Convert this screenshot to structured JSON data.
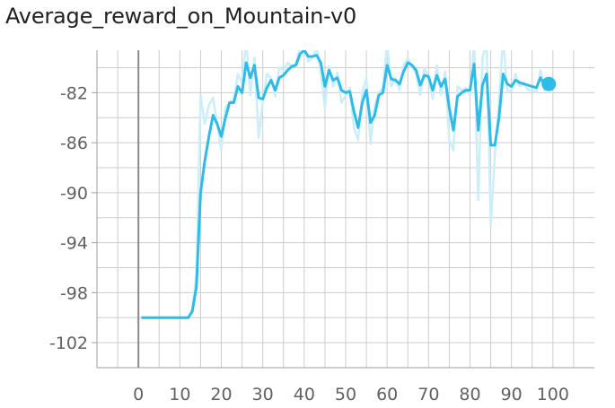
{
  "chart_data": {
    "type": "line",
    "title": "Average_reward_on_Mountain-v0",
    "xlabel": "",
    "ylabel": "",
    "xlim": [
      -10,
      110
    ],
    "ylim": [
      -104.0,
      -78.6
    ],
    "x_ticks": [
      0,
      10,
      20,
      30,
      40,
      50,
      60,
      70,
      80,
      90,
      100
    ],
    "y_ticks": [
      -82,
      -86,
      -90,
      -94,
      -98,
      -102
    ],
    "grid": true,
    "colors": {
      "smoothed": "#2fbbe8",
      "raw": "#cbeef9",
      "axis": "#9e9e9e",
      "grid": "#cccccc"
    },
    "series": [
      {
        "x": [
          1,
          2,
          3,
          4,
          5,
          6,
          7,
          8,
          9,
          10,
          11,
          12,
          13,
          14,
          15,
          16,
          17,
          18,
          19,
          20,
          21,
          22,
          23,
          24,
          25,
          26,
          27,
          28,
          29,
          30,
          31,
          32,
          33,
          34,
          35,
          36,
          37,
          38,
          39,
          40,
          41,
          42,
          43,
          44,
          45,
          46,
          47,
          48,
          49,
          50,
          51,
          52,
          53,
          54,
          55,
          56,
          57,
          58,
          59,
          60,
          61,
          62,
          63,
          64,
          65,
          66,
          67,
          68,
          69,
          70,
          71,
          72,
          73,
          74,
          75,
          76,
          77,
          78,
          79,
          80,
          81,
          82,
          83,
          84,
          85,
          86,
          87,
          88,
          89,
          90,
          91,
          92,
          93,
          94,
          95,
          96,
          97,
          98,
          99
        ],
        "values": [
          -100,
          -100,
          -100,
          -100,
          -100,
          -100,
          -100,
          -100,
          -100,
          -100,
          -100,
          -100,
          -99.5,
          -97.5,
          -90,
          -87.5,
          -85.5,
          -83.8,
          -84.5,
          -85.5,
          -84,
          -82.8,
          -82.8,
          -81.5,
          -82,
          -79.6,
          -80.8,
          -79.8,
          -82.4,
          -82.5,
          -81.6,
          -81.0,
          -81.8,
          -80.8,
          -80.6,
          -80.2,
          -79.9,
          -79.8,
          -78.9,
          -78.6,
          -79.1,
          -79.1,
          -79.0,
          -79.6,
          -81.5,
          -80.2,
          -81.0,
          -80.8,
          -81.8,
          -82.0,
          -81.9,
          -83.5,
          -84.8,
          -82.8,
          -81.8,
          -84.4,
          -83.8,
          -82.2,
          -82.0,
          -79.8,
          -80.9,
          -81.0,
          -81.3,
          -80.3,
          -79.6,
          -79.8,
          -80.2,
          -81.4,
          -80.6,
          -80.7,
          -81.8,
          -80.6,
          -81.5,
          -80.9,
          -83.2,
          -85.0,
          -82.3,
          -82.0,
          -81.8,
          -81.8,
          -79.7,
          -85.0,
          -81.4,
          -80.5,
          -86.2,
          -86.2,
          -84.0,
          -80.5,
          -81.3,
          -81.5,
          -81.0,
          -81.2,
          -81.3,
          -81.4,
          -81.5,
          -81.6,
          -80.8,
          -81.4,
          -81.3
        ]
      },
      {
        "x": [
          1,
          2,
          3,
          4,
          5,
          6,
          7,
          8,
          9,
          10,
          11,
          12,
          13,
          14,
          15,
          16,
          17,
          18,
          19,
          20,
          21,
          22,
          23,
          24,
          25,
          26,
          27,
          28,
          29,
          30,
          31,
          32,
          33,
          34,
          35,
          36,
          37,
          38,
          39,
          40,
          41,
          42,
          43,
          44,
          45,
          46,
          47,
          48,
          49,
          50,
          51,
          52,
          53,
          54,
          55,
          56,
          57,
          58,
          59,
          60,
          61,
          62,
          63,
          64,
          65,
          66,
          67,
          68,
          69,
          70,
          71,
          72,
          73,
          74,
          75,
          76,
          77,
          78,
          79,
          80,
          81,
          82,
          83,
          84,
          85,
          86,
          87,
          88,
          89,
          90,
          91,
          92,
          93,
          94,
          95,
          96,
          97,
          98,
          99
        ],
        "values": [
          -100,
          -100,
          -100,
          -100,
          -100,
          -100,
          -100,
          -100,
          -100,
          -100,
          -100,
          -100,
          -99.3,
          -96.5,
          -82.2,
          -84.5,
          -83.0,
          -82.4,
          -84.5,
          -86.6,
          -83.2,
          -82.8,
          -82.5,
          -80.5,
          -81.2,
          -77.8,
          -82.2,
          -79.2,
          -85.6,
          -82.7,
          -80.5,
          -80.8,
          -82.3,
          -80.0,
          -80.2,
          -79.6,
          -79.9,
          -79.7,
          -78.4,
          -78.2,
          -79.5,
          -79.2,
          -78.4,
          -80.4,
          -83.2,
          -79.9,
          -81.5,
          -80.4,
          -82.8,
          -82.2,
          -81.6,
          -84.8,
          -85.8,
          -82.0,
          -80.8,
          -86.1,
          -83.0,
          -82.0,
          -81.6,
          -78.0,
          -81.5,
          -80.8,
          -81.8,
          -79.8,
          -79.2,
          -79.9,
          -80.5,
          -82.2,
          -80.0,
          -80.8,
          -82.5,
          -79.8,
          -82.2,
          -80.3,
          -85.8,
          -86.6,
          -81.5,
          -81.8,
          -81.6,
          -82.2,
          -77.8,
          -90.6,
          -79.2,
          -78.0,
          -92.6,
          -87.0,
          -82.6,
          -77.5,
          -82.0,
          -81.8,
          -80.5,
          -81.5,
          -81.2,
          -81.8,
          -81.8,
          -82.0,
          -80.2,
          -81.8,
          -81.2
        ]
      }
    ]
  }
}
